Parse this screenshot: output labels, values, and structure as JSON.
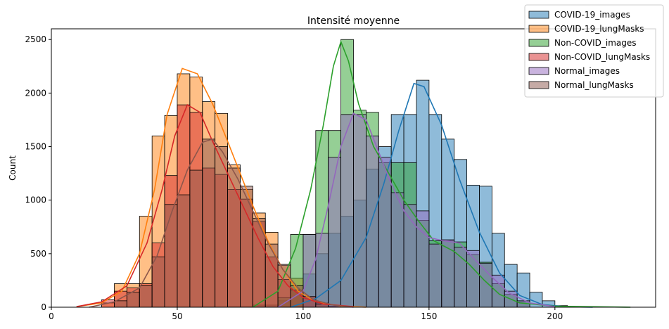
{
  "chart_data": {
    "type": "bar",
    "title": "Intensité moyenne",
    "xlabel": "",
    "ylabel": "Count",
    "xlim": [
      0,
      240
    ],
    "ylim": [
      0,
      2600
    ],
    "xticks": [
      0,
      50,
      100,
      150,
      200
    ],
    "yticks": [
      0,
      500,
      1000,
      1500,
      2000,
      2500
    ],
    "legend_position": "top-right",
    "grid": false,
    "series": [
      {
        "name": "COVID-19_images",
        "color": "#1f77b4",
        "bins": [
          [
            70,
            80,
            3
          ],
          [
            80,
            90,
            20
          ],
          [
            90,
            95,
            60
          ],
          [
            95,
            100,
            160
          ],
          [
            100,
            105,
            310
          ],
          [
            105,
            110,
            500
          ],
          [
            110,
            115,
            690
          ],
          [
            115,
            120,
            850
          ],
          [
            120,
            125,
            1000
          ],
          [
            125,
            130,
            1290
          ],
          [
            130,
            135,
            1500
          ],
          [
            135,
            140,
            1800
          ],
          [
            140,
            145,
            1800
          ],
          [
            145,
            150,
            2120
          ],
          [
            150,
            155,
            1800
          ],
          [
            155,
            160,
            1570
          ],
          [
            160,
            165,
            1380
          ],
          [
            165,
            170,
            1140
          ],
          [
            170,
            175,
            1130
          ],
          [
            175,
            180,
            690
          ],
          [
            180,
            185,
            400
          ],
          [
            185,
            190,
            320
          ],
          [
            190,
            195,
            140
          ],
          [
            195,
            200,
            60
          ],
          [
            200,
            205,
            15
          ]
        ],
        "kde": [
          [
            95,
            0
          ],
          [
            105,
            80
          ],
          [
            115,
            250
          ],
          [
            125,
            650
          ],
          [
            132,
            1150
          ],
          [
            138,
            1650
          ],
          [
            144,
            2090
          ],
          [
            148,
            2060
          ],
          [
            155,
            1700
          ],
          [
            162,
            1200
          ],
          [
            170,
            700
          ],
          [
            178,
            320
          ],
          [
            186,
            110
          ],
          [
            195,
            25
          ],
          [
            205,
            3
          ],
          [
            215,
            0
          ]
        ]
      },
      {
        "name": "COVID-19_lungMasks",
        "color": "#ff7f0e",
        "bins": [
          [
            20,
            25,
            40
          ],
          [
            25,
            30,
            220
          ],
          [
            30,
            35,
            220
          ],
          [
            35,
            40,
            850
          ],
          [
            40,
            45,
            1600
          ],
          [
            45,
            50,
            1790
          ],
          [
            50,
            55,
            2180
          ],
          [
            55,
            60,
            2150
          ],
          [
            60,
            65,
            1920
          ],
          [
            65,
            70,
            1810
          ],
          [
            70,
            75,
            1330
          ],
          [
            75,
            80,
            1100
          ],
          [
            80,
            85,
            880
          ],
          [
            85,
            90,
            700
          ],
          [
            90,
            95,
            390
          ],
          [
            95,
            100,
            270
          ],
          [
            100,
            105,
            100
          ],
          [
            105,
            110,
            40
          ],
          [
            110,
            115,
            10
          ]
        ],
        "kde": [
          [
            10,
            5
          ],
          [
            20,
            40
          ],
          [
            28,
            150
          ],
          [
            35,
            500
          ],
          [
            41,
            1100
          ],
          [
            46,
            1800
          ],
          [
            52,
            2230
          ],
          [
            58,
            2180
          ],
          [
            64,
            1900
          ],
          [
            70,
            1550
          ],
          [
            75,
            1250
          ],
          [
            80,
            950
          ],
          [
            86,
            620
          ],
          [
            92,
            350
          ],
          [
            98,
            150
          ],
          [
            105,
            50
          ],
          [
            115,
            10
          ],
          [
            125,
            0
          ]
        ]
      },
      {
        "name": "Non-COVID_images",
        "color": "#2ca02c",
        "bins": [
          [
            90,
            95,
            90
          ],
          [
            95,
            100,
            680
          ],
          [
            100,
            105,
            680
          ],
          [
            105,
            110,
            1650
          ],
          [
            110,
            115,
            1650
          ],
          [
            115,
            120,
            2500
          ],
          [
            120,
            125,
            1840
          ],
          [
            125,
            130,
            1820
          ],
          [
            130,
            135,
            1350
          ],
          [
            135,
            140,
            1350
          ],
          [
            140,
            145,
            1350
          ],
          [
            145,
            150,
            810
          ],
          [
            150,
            155,
            620
          ],
          [
            155,
            160,
            620
          ],
          [
            160,
            165,
            610
          ],
          [
            165,
            170,
            490
          ],
          [
            170,
            175,
            420
          ],
          [
            175,
            180,
            220
          ],
          [
            180,
            185,
            120
          ],
          [
            185,
            190,
            50
          ]
        ],
        "kde": [
          [
            80,
            0
          ],
          [
            90,
            150
          ],
          [
            97,
            550
          ],
          [
            103,
            1100
          ],
          [
            108,
            1700
          ],
          [
            112,
            2250
          ],
          [
            115,
            2480
          ],
          [
            118,
            2300
          ],
          [
            122,
            1900
          ],
          [
            128,
            1500
          ],
          [
            134,
            1250
          ],
          [
            140,
            1000
          ],
          [
            146,
            800
          ],
          [
            152,
            620
          ],
          [
            160,
            520
          ],
          [
            166,
            400
          ],
          [
            172,
            250
          ],
          [
            178,
            120
          ],
          [
            186,
            40
          ],
          [
            200,
            10
          ],
          [
            230,
            0
          ]
        ]
      },
      {
        "name": "Non-COVID_lungMasks",
        "color": "#d62728",
        "bins": [
          [
            20,
            25,
            70
          ],
          [
            25,
            30,
            150
          ],
          [
            30,
            35,
            180
          ],
          [
            35,
            40,
            220
          ],
          [
            40,
            45,
            600
          ],
          [
            45,
            50,
            1230
          ],
          [
            50,
            55,
            1890
          ],
          [
            55,
            60,
            1820
          ],
          [
            60,
            65,
            1300
          ],
          [
            65,
            70,
            1240
          ],
          [
            70,
            75,
            1100
          ],
          [
            75,
            80,
            1010
          ],
          [
            80,
            85,
            800
          ],
          [
            85,
            90,
            470
          ],
          [
            90,
            95,
            260
          ],
          [
            95,
            100,
            160
          ],
          [
            100,
            105,
            100
          ],
          [
            105,
            110,
            40
          ],
          [
            110,
            115,
            10
          ]
        ],
        "kde": [
          [
            10,
            5
          ],
          [
            20,
            50
          ],
          [
            30,
            200
          ],
          [
            38,
            600
          ],
          [
            44,
            1100
          ],
          [
            49,
            1600
          ],
          [
            54,
            1890
          ],
          [
            59,
            1820
          ],
          [
            64,
            1550
          ],
          [
            70,
            1250
          ],
          [
            76,
            950
          ],
          [
            82,
            650
          ],
          [
            88,
            380
          ],
          [
            94,
            200
          ],
          [
            100,
            90
          ],
          [
            108,
            30
          ],
          [
            120,
            5
          ]
        ]
      },
      {
        "name": "Normal_images",
        "color": "#9467bd",
        "bins": [
          [
            100,
            105,
            680
          ],
          [
            105,
            110,
            690
          ],
          [
            110,
            115,
            1400
          ],
          [
            115,
            120,
            1800
          ],
          [
            120,
            125,
            1800
          ],
          [
            125,
            130,
            1600
          ],
          [
            130,
            135,
            1400
          ],
          [
            135,
            140,
            1070
          ],
          [
            140,
            145,
            960
          ],
          [
            145,
            150,
            900
          ],
          [
            150,
            155,
            590
          ],
          [
            155,
            160,
            630
          ],
          [
            160,
            165,
            560
          ],
          [
            165,
            170,
            530
          ],
          [
            170,
            175,
            410
          ],
          [
            175,
            180,
            300
          ],
          [
            180,
            185,
            150
          ],
          [
            185,
            190,
            60
          ]
        ],
        "kde": [
          [
            90,
            0
          ],
          [
            100,
            150
          ],
          [
            105,
            450
          ],
          [
            110,
            950
          ],
          [
            115,
            1500
          ],
          [
            120,
            1810
          ],
          [
            125,
            1750
          ],
          [
            130,
            1450
          ],
          [
            135,
            1150
          ],
          [
            140,
            900
          ],
          [
            145,
            750
          ],
          [
            150,
            650
          ],
          [
            156,
            620
          ],
          [
            162,
            600
          ],
          [
            168,
            450
          ],
          [
            175,
            280
          ],
          [
            182,
            130
          ],
          [
            190,
            40
          ],
          [
            200,
            5
          ]
        ]
      },
      {
        "name": "Normal_lungMasks",
        "color": "#8c564b",
        "bins": [
          [
            25,
            30,
            60
          ],
          [
            30,
            35,
            140
          ],
          [
            35,
            40,
            200
          ],
          [
            40,
            45,
            470
          ],
          [
            45,
            50,
            960
          ],
          [
            50,
            55,
            1050
          ],
          [
            55,
            60,
            1280
          ],
          [
            60,
            65,
            1570
          ],
          [
            65,
            70,
            1500
          ],
          [
            70,
            75,
            1300
          ],
          [
            75,
            80,
            1130
          ],
          [
            80,
            85,
            830
          ],
          [
            85,
            90,
            590
          ],
          [
            90,
            95,
            400
          ],
          [
            95,
            100,
            200
          ],
          [
            100,
            105,
            100
          ],
          [
            105,
            110,
            30
          ]
        ],
        "kde": [
          [
            15,
            0
          ],
          [
            25,
            50
          ],
          [
            35,
            180
          ],
          [
            42,
            480
          ],
          [
            48,
            900
          ],
          [
            54,
            1280
          ],
          [
            60,
            1540
          ],
          [
            64,
            1570
          ],
          [
            68,
            1450
          ],
          [
            74,
            1200
          ],
          [
            80,
            900
          ],
          [
            86,
            600
          ],
          [
            92,
            350
          ],
          [
            98,
            180
          ],
          [
            104,
            70
          ],
          [
            112,
            20
          ],
          [
            120,
            0
          ]
        ]
      }
    ]
  }
}
